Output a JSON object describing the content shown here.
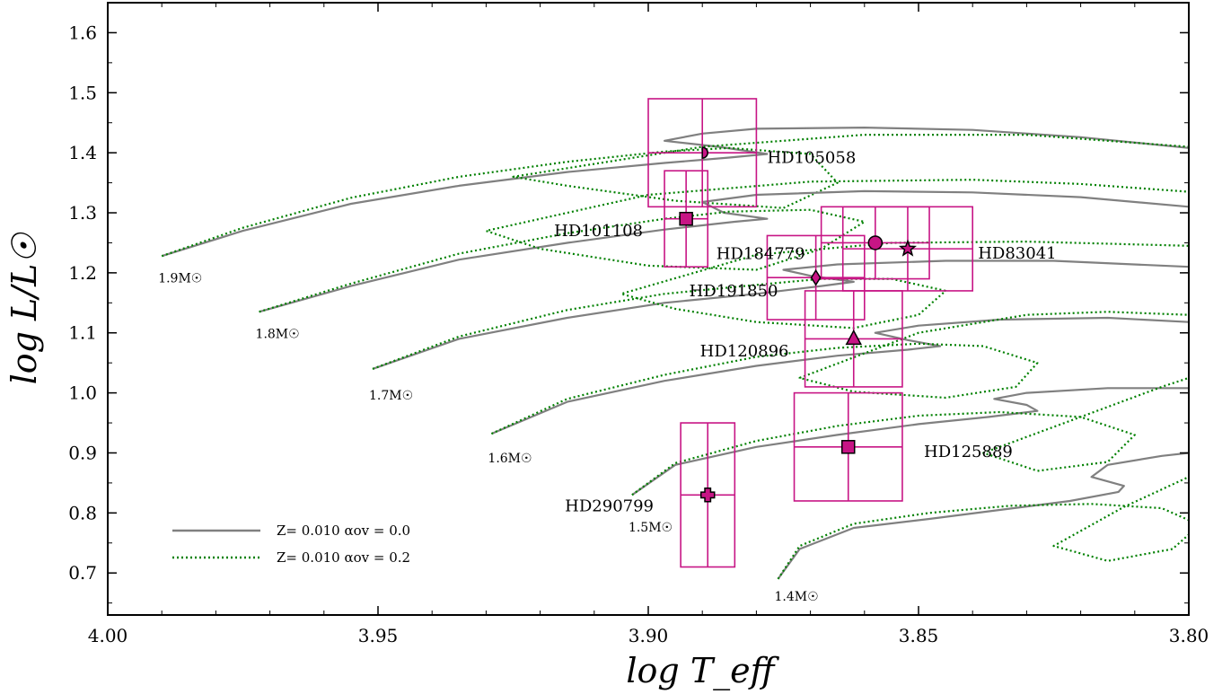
{
  "chart_data": {
    "type": "line",
    "xlabel": "log T_eff",
    "ylabel": "log L/L☉",
    "xlim": [
      4.0,
      3.8
    ],
    "ylim": [
      0.63,
      1.65
    ],
    "x_inverted": true,
    "x_ticks": [
      "4.00",
      "3.95",
      "3.90",
      "3.85",
      "3.80"
    ],
    "x_tick_values": [
      4.0,
      3.95,
      3.9,
      3.85,
      3.8
    ],
    "y_ticks": [
      "0.7",
      "0.8",
      "0.9",
      "1.0",
      "1.1",
      "1.2",
      "1.3",
      "1.4",
      "1.5",
      "1.6"
    ],
    "y_tick_values": [
      0.7,
      0.8,
      0.9,
      1.0,
      1.1,
      1.2,
      1.3,
      1.4,
      1.5,
      1.6
    ],
    "grid": false,
    "legend_position": "bottom-left",
    "legend": [
      {
        "label": "Z= 0.010 αov = 0.0",
        "color": "#808080",
        "style": "solid"
      },
      {
        "label": "Z= 0.010 αov = 0.2",
        "color": "#008000",
        "style": "dotted"
      }
    ],
    "mass_labels": [
      {
        "text": "1.9M☉",
        "x": 3.99,
        "y": 1.205
      },
      {
        "text": "1.8M☉",
        "x": 3.972,
        "y": 1.112
      },
      {
        "text": "1.7M☉",
        "x": 3.951,
        "y": 1.01
      },
      {
        "text": "1.6M☉",
        "x": 3.929,
        "y": 0.905
      },
      {
        "text": "1.5M☉",
        "x": 3.903,
        "y": 0.79
      },
      {
        "text": "1.4M☉",
        "x": 3.876,
        "y": 0.675
      }
    ],
    "series": [
      {
        "name": "1.9M☉",
        "model": "αov = 0.0",
        "x": [
          3.99,
          3.975,
          3.955,
          3.935,
          3.915,
          3.897,
          3.885,
          3.878,
          3.887,
          3.897,
          3.89,
          3.88,
          3.86,
          3.84,
          3.82,
          3.8
        ],
        "y": [
          1.228,
          1.27,
          1.315,
          1.345,
          1.368,
          1.383,
          1.392,
          1.398,
          1.41,
          1.42,
          1.432,
          1.44,
          1.442,
          1.438,
          1.426,
          1.408
        ]
      },
      {
        "name": "1.9M☉",
        "model": "αov = 0.2",
        "x": [
          3.99,
          3.975,
          3.955,
          3.935,
          3.915,
          3.897,
          3.885,
          3.87,
          3.865,
          3.875,
          3.895,
          3.915,
          3.925,
          3.89,
          3.86,
          3.83,
          3.8
        ],
        "y": [
          1.228,
          1.275,
          1.325,
          1.36,
          1.385,
          1.402,
          1.408,
          1.398,
          1.35,
          1.308,
          1.32,
          1.345,
          1.36,
          1.41,
          1.43,
          1.43,
          1.41
        ]
      },
      {
        "name": "1.8M☉",
        "model": "αov = 0.0",
        "x": [
          3.972,
          3.955,
          3.935,
          3.915,
          3.897,
          3.884,
          3.878,
          3.886,
          3.89,
          3.88,
          3.86,
          3.84,
          3.82,
          3.8
        ],
        "y": [
          1.135,
          1.178,
          1.222,
          1.25,
          1.272,
          1.285,
          1.29,
          1.3,
          1.318,
          1.33,
          1.336,
          1.334,
          1.326,
          1.31
        ]
      },
      {
        "name": "1.8M☉",
        "model": "αov = 0.2",
        "x": [
          3.972,
          3.955,
          3.935,
          3.915,
          3.897,
          3.885,
          3.87,
          3.86,
          3.868,
          3.88,
          3.9,
          3.92,
          3.93,
          3.9,
          3.87,
          3.84,
          3.82,
          3.8
        ],
        "y": [
          1.135,
          1.182,
          1.232,
          1.266,
          1.29,
          1.302,
          1.305,
          1.285,
          1.24,
          1.205,
          1.212,
          1.24,
          1.27,
          1.33,
          1.352,
          1.355,
          1.348,
          1.335
        ]
      },
      {
        "name": "1.7M☉",
        "model": "αov = 0.0",
        "x": [
          3.951,
          3.935,
          3.915,
          3.897,
          3.88,
          3.868,
          3.862,
          3.87,
          3.875,
          3.865,
          3.845,
          3.825,
          3.8
        ],
        "y": [
          1.04,
          1.09,
          1.125,
          1.15,
          1.165,
          1.178,
          1.185,
          1.195,
          1.205,
          1.214,
          1.22,
          1.22,
          1.21
        ]
      },
      {
        "name": "1.7M☉",
        "model": "αov = 0.2",
        "x": [
          3.951,
          3.935,
          3.915,
          3.897,
          3.88,
          3.868,
          3.855,
          3.845,
          3.85,
          3.862,
          3.88,
          3.895,
          3.905,
          3.88,
          3.855,
          3.83,
          3.8
        ],
        "y": [
          1.04,
          1.094,
          1.138,
          1.165,
          1.18,
          1.19,
          1.19,
          1.17,
          1.13,
          1.108,
          1.118,
          1.14,
          1.165,
          1.23,
          1.25,
          1.252,
          1.245
        ]
      },
      {
        "name": "1.6M☉",
        "model": "αov = 0.0",
        "x": [
          3.929,
          3.915,
          3.897,
          3.88,
          3.865,
          3.852,
          3.846,
          3.852,
          3.858,
          3.85,
          3.835,
          3.815,
          3.8
        ],
        "y": [
          0.932,
          0.985,
          1.02,
          1.045,
          1.062,
          1.072,
          1.078,
          1.088,
          1.1,
          1.112,
          1.122,
          1.125,
          1.118
        ]
      },
      {
        "name": "1.6M☉",
        "model": "αov = 0.2",
        "x": [
          3.929,
          3.915,
          3.897,
          3.88,
          3.865,
          3.85,
          3.838,
          3.828,
          3.832,
          3.845,
          3.862,
          3.872,
          3.85,
          3.83,
          3.815,
          3.8
        ],
        "y": [
          0.932,
          0.99,
          1.03,
          1.06,
          1.075,
          1.082,
          1.078,
          1.05,
          1.01,
          0.992,
          1.002,
          1.025,
          1.1,
          1.13,
          1.135,
          1.13
        ]
      },
      {
        "name": "1.5M☉",
        "model": "αov = 0.0",
        "x": [
          3.903,
          3.895,
          3.88,
          3.865,
          3.85,
          3.837,
          3.828,
          3.83,
          3.836,
          3.83,
          3.815,
          3.8
        ],
        "y": [
          0.83,
          0.88,
          0.91,
          0.93,
          0.948,
          0.96,
          0.97,
          0.98,
          0.99,
          1.0,
          1.008,
          1.008
        ]
      },
      {
        "name": "1.5M☉",
        "model": "αov = 0.2",
        "x": [
          3.903,
          3.895,
          3.88,
          3.865,
          3.85,
          3.835,
          3.82,
          3.81,
          3.815,
          3.828,
          3.838,
          3.82,
          3.805,
          3.8
        ],
        "y": [
          0.83,
          0.883,
          0.92,
          0.945,
          0.962,
          0.968,
          0.96,
          0.93,
          0.885,
          0.87,
          0.9,
          0.96,
          1.01,
          1.025
        ]
      },
      {
        "name": "1.4M☉",
        "model": "αov = 0.0",
        "x": [
          3.876,
          3.872,
          3.862,
          3.848,
          3.835,
          3.822,
          3.813,
          3.812,
          3.818,
          3.815,
          3.805,
          3.8
        ],
        "y": [
          0.69,
          0.74,
          0.775,
          0.79,
          0.805,
          0.82,
          0.835,
          0.845,
          0.86,
          0.88,
          0.895,
          0.9
        ]
      },
      {
        "name": "1.4M☉",
        "model": "αov = 0.2",
        "x": [
          3.876,
          3.872,
          3.862,
          3.848,
          3.833,
          3.818,
          3.805,
          3.798,
          3.803,
          3.815,
          3.825,
          3.812,
          3.8
        ],
        "y": [
          0.69,
          0.745,
          0.782,
          0.8,
          0.812,
          0.815,
          0.808,
          0.78,
          0.74,
          0.72,
          0.745,
          0.81,
          0.86
        ]
      }
    ],
    "stars": [
      {
        "name": "HD105058",
        "marker": "half-circle",
        "logT": 3.89,
        "dlogT": 0.01,
        "logL": 1.4,
        "dlogL": 0.09,
        "label_x": 3.878,
        "label_y": 1.392,
        "label_anchor": "start"
      },
      {
        "name": "HD101108",
        "marker": "square",
        "logT": 3.893,
        "dlogT": 0.004,
        "logL": 1.29,
        "dlogL": 0.08,
        "label_x": 3.901,
        "label_y": 1.27,
        "label_anchor": "end"
      },
      {
        "name": "HD184779",
        "marker": "circle",
        "logT": 3.858,
        "dlogT": 0.01,
        "logL": 1.25,
        "dlogL": 0.06,
        "label_x": 3.871,
        "label_y": 1.232,
        "label_anchor": "end"
      },
      {
        "name": "HD83041",
        "marker": "star",
        "logT": 3.852,
        "dlogT": 0.012,
        "logL": 1.24,
        "dlogL": 0.07,
        "label_x": 3.839,
        "label_y": 1.233,
        "label_anchor": "start"
      },
      {
        "name": "HD191850",
        "marker": "diamond",
        "logT": 3.869,
        "dlogT": 0.009,
        "logL": 1.192,
        "dlogL": 0.07,
        "label_x": 3.876,
        "label_y": 1.17,
        "label_anchor": "end"
      },
      {
        "name": "HD120896",
        "marker": "triangle",
        "logT": 3.862,
        "dlogT": 0.009,
        "logL": 1.09,
        "dlogL": 0.08,
        "label_x": 3.874,
        "label_y": 1.07,
        "label_anchor": "end"
      },
      {
        "name": "HD125889",
        "marker": "square",
        "logT": 3.863,
        "dlogT": 0.01,
        "logL": 0.91,
        "dlogL": 0.09,
        "label_x": 3.849,
        "label_y": 0.902,
        "label_anchor": "start"
      },
      {
        "name": "HD290799",
        "marker": "plus",
        "logT": 3.889,
        "dlogT": 0.005,
        "logL": 0.83,
        "dlogL": 0.12,
        "label_x": 3.899,
        "label_y": 0.812,
        "label_anchor": "end"
      }
    ]
  },
  "colors": {
    "gray_track": "#808080",
    "green_track": "#008000",
    "star_marker": "#c71585",
    "box": "#c71585",
    "axes": "#000000"
  }
}
